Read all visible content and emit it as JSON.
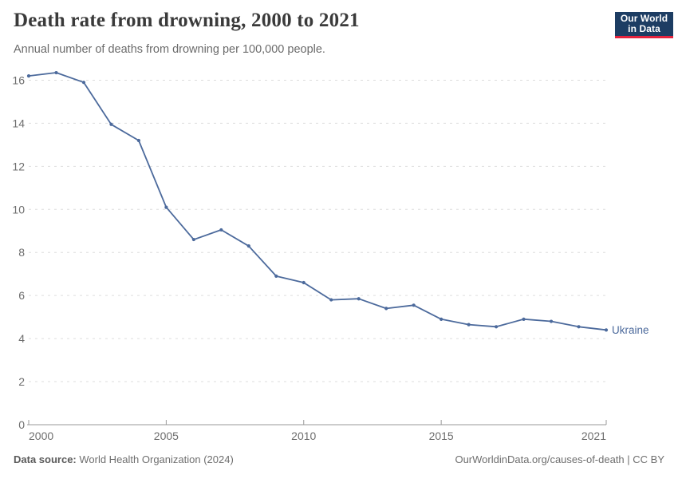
{
  "header": {
    "title": "Death rate from drowning, 2000 to 2021",
    "subtitle": "Annual number of deaths from drowning per 100,000 people.",
    "logo": {
      "line1": "Our World",
      "line2": "in Data",
      "background": "#1d3d63",
      "accent": "#e5233d"
    }
  },
  "chart_data": {
    "type": "line",
    "title": "Death rate from drowning, 2000 to 2021",
    "entity_label": "Ukraine",
    "x": [
      2000,
      2001,
      2002,
      2003,
      2004,
      2005,
      2006,
      2007,
      2008,
      2009,
      2010,
      2011,
      2012,
      2013,
      2014,
      2015,
      2016,
      2017,
      2018,
      2019,
      2020,
      2021
    ],
    "series": [
      {
        "name": "Ukraine",
        "color": "#4c6a9c",
        "values": [
          16.2,
          16.35,
          15.9,
          13.95,
          13.2,
          10.1,
          8.6,
          9.05,
          8.3,
          6.9,
          6.6,
          5.8,
          5.85,
          5.4,
          5.55,
          4.9,
          4.65,
          4.55,
          4.9,
          4.8,
          4.55,
          4.4
        ]
      }
    ],
    "xticks": [
      2000,
      2005,
      2010,
      2015,
      2021
    ],
    "yticks": [
      0,
      2,
      4,
      6,
      8,
      10,
      12,
      14,
      16
    ],
    "ylim": [
      0,
      16.5
    ],
    "xlabel": "",
    "ylabel": "",
    "grid": "horizontal-dashed",
    "legend_position": "end-of-line-label"
  },
  "footer": {
    "source_bold": "Data source:",
    "source_text": " World Health Organization (2024)",
    "credit": "OurWorldinData.org/causes-of-death | CC BY"
  },
  "colors": {
    "line": "#4c6a9c",
    "grid": "#dddddd",
    "axis": "#999999",
    "tick_text": "#6e6e6e",
    "title_text": "#3a3a3a"
  }
}
